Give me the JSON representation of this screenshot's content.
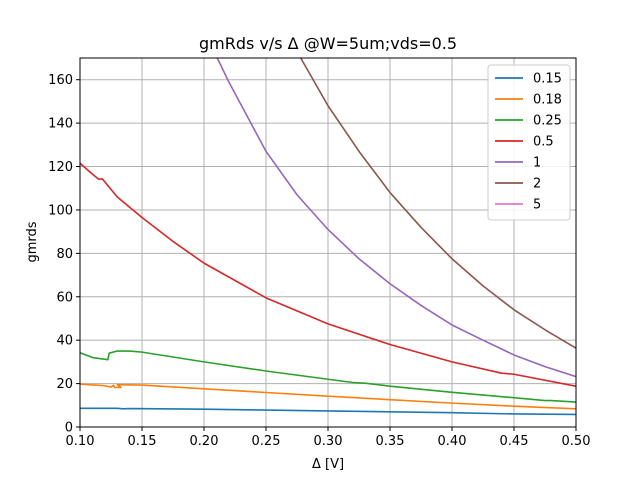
{
  "chart_data": {
    "type": "line",
    "title": "gmRds v/s Δ @W=5um;vds=0.5",
    "xlabel": "Δ [V]",
    "ylabel": "gmrds",
    "xlim": [
      0.1,
      0.5
    ],
    "ylim": [
      0,
      170
    ],
    "xticks": [
      "0.10",
      "0.15",
      "0.20",
      "0.25",
      "0.30",
      "0.35",
      "0.40",
      "0.45",
      "0.50"
    ],
    "xtick_values": [
      0.1,
      0.15,
      0.2,
      0.25,
      0.3,
      0.35,
      0.4,
      0.45,
      0.5
    ],
    "yticks": [
      "0",
      "20",
      "40",
      "60",
      "80",
      "100",
      "120",
      "140",
      "160"
    ],
    "ytick_values": [
      0,
      20,
      40,
      60,
      80,
      100,
      120,
      140,
      160
    ],
    "grid": true,
    "legend_position": "top-right",
    "series": [
      {
        "name": "0.15",
        "color": "#1f77b4",
        "points": [
          [
            0.1,
            8.6
          ],
          [
            0.13,
            8.6
          ],
          [
            0.135,
            8.4
          ],
          [
            0.14,
            8.5
          ],
          [
            0.2,
            8.2
          ],
          [
            0.25,
            7.8
          ],
          [
            0.3,
            7.4
          ],
          [
            0.35,
            7.0
          ],
          [
            0.4,
            6.6
          ],
          [
            0.45,
            6.0
          ],
          [
            0.5,
            5.8
          ]
        ]
      },
      {
        "name": "0.18",
        "color": "#ff7f0e",
        "points": [
          [
            0.1,
            19.8
          ],
          [
            0.12,
            19.0
          ],
          [
            0.125,
            18.4
          ],
          [
            0.127,
            19.2
          ],
          [
            0.128,
            18.2
          ],
          [
            0.133,
            18.3
          ],
          [
            0.13,
            19.5
          ],
          [
            0.15,
            19.3
          ],
          [
            0.2,
            17.6
          ],
          [
            0.25,
            15.9
          ],
          [
            0.3,
            14.2
          ],
          [
            0.35,
            12.6
          ],
          [
            0.4,
            11.0
          ],
          [
            0.45,
            9.6
          ],
          [
            0.5,
            8.4
          ]
        ]
      },
      {
        "name": "0.25",
        "color": "#2ca02c",
        "points": [
          [
            0.1,
            34.2
          ],
          [
            0.11,
            32.0
          ],
          [
            0.1225,
            31.0
          ],
          [
            0.1235,
            34.0
          ],
          [
            0.13,
            35.0
          ],
          [
            0.14,
            35.0
          ],
          [
            0.15,
            34.5
          ],
          [
            0.2,
            30.0
          ],
          [
            0.25,
            25.8
          ],
          [
            0.3,
            22.0
          ],
          [
            0.32,
            20.5
          ],
          [
            0.33,
            20.2
          ],
          [
            0.35,
            18.8
          ],
          [
            0.4,
            16.0
          ],
          [
            0.45,
            13.5
          ],
          [
            0.475,
            12.2
          ],
          [
            0.48,
            12.2
          ],
          [
            0.5,
            11.5
          ]
        ]
      },
      {
        "name": "0.5",
        "color": "#d62728",
        "points": [
          [
            0.1,
            121.5
          ],
          [
            0.11,
            116.5
          ],
          [
            0.115,
            114.2
          ],
          [
            0.118,
            114.3
          ],
          [
            0.13,
            106.0
          ],
          [
            0.15,
            96.5
          ],
          [
            0.175,
            85.5
          ],
          [
            0.2,
            75.5
          ],
          [
            0.25,
            59.5
          ],
          [
            0.3,
            47.5
          ],
          [
            0.35,
            38.0
          ],
          [
            0.4,
            30.0
          ],
          [
            0.44,
            24.8
          ],
          [
            0.45,
            24.3
          ],
          [
            0.5,
            18.8
          ]
        ]
      },
      {
        "name": "1",
        "color": "#9467bd",
        "points": [
          [
            0.209,
            172.0
          ],
          [
            0.22,
            159.0
          ],
          [
            0.25,
            127.0
          ],
          [
            0.275,
            107.0
          ],
          [
            0.3,
            91.0
          ],
          [
            0.325,
            77.5
          ],
          [
            0.35,
            66.0
          ],
          [
            0.375,
            56.0
          ],
          [
            0.4,
            47.0
          ],
          [
            0.425,
            40.0
          ],
          [
            0.45,
            33.2
          ],
          [
            0.475,
            27.8
          ],
          [
            0.5,
            23.2
          ]
        ]
      },
      {
        "name": "2",
        "color": "#8c564b",
        "points": [
          [
            0.276,
            172.0
          ],
          [
            0.3,
            148.0
          ],
          [
            0.325,
            127.0
          ],
          [
            0.35,
            108.0
          ],
          [
            0.375,
            92.0
          ],
          [
            0.4,
            77.5
          ],
          [
            0.425,
            65.0
          ],
          [
            0.45,
            54.0
          ],
          [
            0.475,
            44.8
          ],
          [
            0.5,
            36.3
          ]
        ]
      },
      {
        "name": "5",
        "color": "#e377c2",
        "points": []
      }
    ]
  }
}
